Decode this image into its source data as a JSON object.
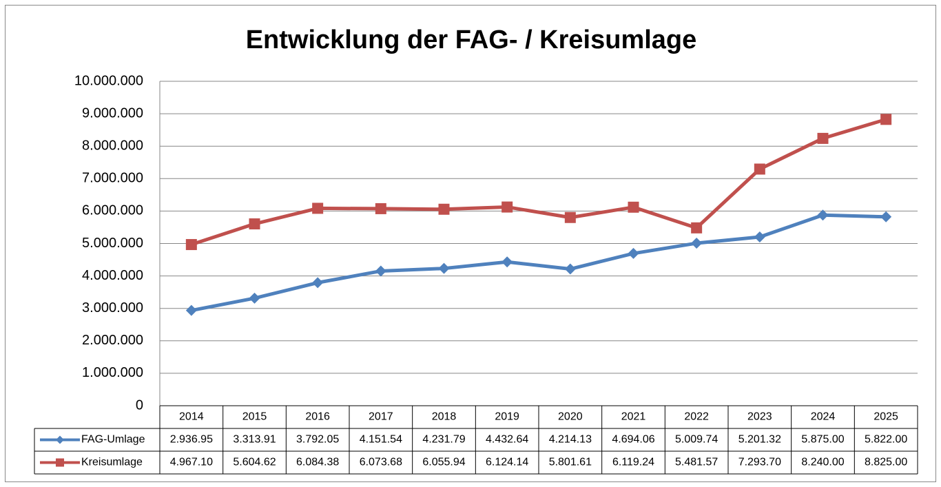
{
  "chart_data": {
    "type": "line",
    "title": "Entwicklung der FAG- / Kreisumlage",
    "categories": [
      "2014",
      "2015",
      "2016",
      "2017",
      "2018",
      "2019",
      "2020",
      "2021",
      "2022",
      "2023",
      "2024",
      "2025"
    ],
    "series": [
      {
        "name": "FAG-Umlage",
        "color": "#4f81bd",
        "marker": "diamond",
        "values": [
          2936950,
          3313910,
          3792050,
          4151540,
          4231790,
          4432640,
          4214130,
          4694060,
          5009740,
          5201320,
          5875000,
          5822000
        ],
        "value_labels": [
          "2.936.95",
          "3.313.91",
          "3.792.05",
          "4.151.54",
          "4.231.79",
          "4.432.64",
          "4.214.13",
          "4.694.06",
          "5.009.74",
          "5.201.32",
          "5.875.00",
          "5.822.00"
        ]
      },
      {
        "name": "Kreisumlage",
        "color": "#c0504d",
        "marker": "square",
        "values": [
          4967100,
          5604620,
          6084380,
          6073680,
          6055940,
          6124140,
          5801610,
          6119240,
          5481570,
          7293700,
          8240000,
          8825000
        ],
        "value_labels": [
          "4.967.10",
          "5.604.62",
          "6.084.38",
          "6.073.68",
          "6.055.94",
          "6.124.14",
          "5.801.61",
          "6.119.24",
          "5.481.57",
          "7.293.70",
          "8.240.00",
          "8.825.00"
        ]
      }
    ],
    "ylim": [
      0,
      10000000
    ],
    "yticks": [
      0,
      {
        "value": 1000000,
        "label": "1.000.000"
      },
      {
        "value": 2000000,
        "label": "2.000.000"
      },
      {
        "value": 3000000,
        "label": "3.000.000"
      },
      {
        "value": 4000000,
        "label": "4.000.000"
      },
      {
        "value": 5000000,
        "label": "5.000.000"
      },
      {
        "value": 6000000,
        "label": "6.000.000"
      },
      {
        "value": 7000000,
        "label": "7.000.000"
      },
      {
        "value": 8000000,
        "label": "8.000.000"
      },
      {
        "value": 9000000,
        "label": "9.000.000"
      },
      {
        "value": 10000000,
        "label": "10.000.000"
      }
    ],
    "grid": true
  }
}
